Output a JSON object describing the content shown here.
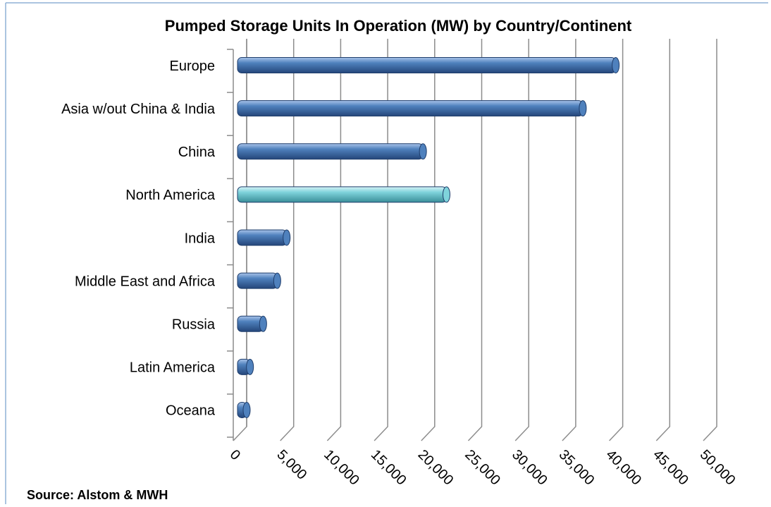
{
  "chart_data": {
    "type": "bar",
    "orientation": "horizontal",
    "title": "Pumped Storage Units In Operation (MW) by Country/Continent",
    "categories": [
      "Europe",
      "Asia w/out China & India",
      "China",
      "North America",
      "India",
      "Middle East and Africa",
      "Russia",
      "Latin America",
      "Oceana"
    ],
    "values": [
      40000,
      36500,
      19500,
      22000,
      5000,
      4000,
      2500,
      1100,
      750
    ],
    "colors": [
      "#4f81bd",
      "#4f81bd",
      "#4f81bd",
      "#7fd3db",
      "#4f81bd",
      "#4f81bd",
      "#4f81bd",
      "#4f81bd",
      "#4f81bd"
    ],
    "xlim": [
      0,
      50000
    ],
    "xticks": [
      0,
      {
        "value": 5000,
        "label": "5,000"
      },
      {
        "value": 10000,
        "label": "10,000"
      },
      {
        "value": 15000,
        "label": "15,000"
      },
      {
        "value": 20000,
        "label": "20,000"
      },
      {
        "value": 25000,
        "label": "25,000"
      },
      {
        "value": 30000,
        "label": "30,000"
      },
      {
        "value": 35000,
        "label": "35,000"
      },
      {
        "value": 40000,
        "label": "40,000"
      },
      {
        "value": 45000,
        "label": "45,000"
      },
      {
        "value": 50000,
        "label": "50,000"
      }
    ],
    "grid": true,
    "source": "Source: Alstom & MWH"
  }
}
